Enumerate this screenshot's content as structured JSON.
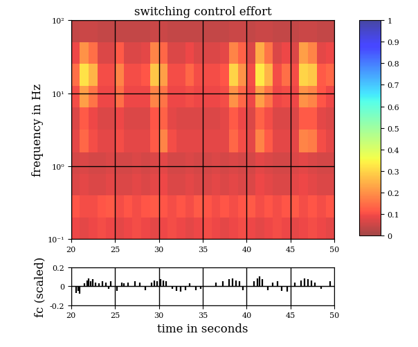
{
  "chart_data": [
    {
      "type": "heatmap",
      "title": "switching control effort",
      "ylabel": "frequency in Hz",
      "log": "y",
      "grid": true,
      "x": [
        20.5,
        21.5,
        22.5,
        23.5,
        24.5,
        25.5,
        26.5,
        27.5,
        28.5,
        29.5,
        30.5,
        31.5,
        32.5,
        33.5,
        34.5,
        35.5,
        36.5,
        37.5,
        38.5,
        39.5,
        40.5,
        41.5,
        42.5,
        43.5,
        44.5,
        45.5,
        46.5,
        47.5,
        48.5,
        49.5
      ],
      "y": [
        0.14,
        0.28,
        0.56,
        1.1,
        2.2,
        4.5,
        8.9,
        18,
        35,
        71
      ],
      "cells": [
        [
          0.09,
          0.08,
          0.09,
          0.1,
          0.09,
          0.08,
          0.09,
          0.1,
          0.09,
          0.08,
          0.09,
          0.1,
          0.09,
          0.08,
          0.09,
          0.1,
          0.09,
          0.08,
          0.09,
          0.1,
          0.09,
          0.08,
          0.09,
          0.1,
          0.09,
          0.08,
          0.09,
          0.1,
          0.09,
          0.08
        ],
        [
          0.11,
          0.1,
          0.1,
          0.11,
          0.12,
          0.1,
          0.11,
          0.1,
          0.11,
          0.12,
          0.11,
          0.1,
          0.11,
          0.1,
          0.12,
          0.11,
          0.1,
          0.11,
          0.1,
          0.11,
          0.12,
          0.1,
          0.11,
          0.1,
          0.11,
          0.12,
          0.1,
          0.11,
          0.1,
          0.11
        ],
        [
          0.07,
          0.08,
          0.07,
          0.07,
          0.08,
          0.07,
          0.07,
          0.08,
          0.07,
          0.08,
          0.09,
          0.07,
          0.07,
          0.08,
          0.07,
          0.07,
          0.08,
          0.07,
          0.08,
          0.07,
          0.07,
          0.09,
          0.08,
          0.07,
          0.07,
          0.08,
          0.09,
          0.08,
          0.07,
          0.07
        ],
        [
          0.06,
          0.07,
          0.06,
          0.06,
          0.07,
          0.06,
          0.06,
          0.07,
          0.06,
          0.07,
          0.08,
          0.06,
          0.06,
          0.07,
          0.06,
          0.06,
          0.07,
          0.06,
          0.07,
          0.06,
          0.06,
          0.08,
          0.07,
          0.06,
          0.06,
          0.07,
          0.08,
          0.07,
          0.06,
          0.06
        ],
        [
          0.08,
          0.14,
          0.1,
          0.08,
          0.08,
          0.1,
          0.08,
          0.08,
          0.08,
          0.12,
          0.18,
          0.1,
          0.08,
          0.08,
          0.08,
          0.08,
          0.08,
          0.08,
          0.14,
          0.1,
          0.08,
          0.18,
          0.12,
          0.08,
          0.08,
          0.08,
          0.18,
          0.17,
          0.1,
          0.08
        ],
        [
          0.07,
          0.12,
          0.09,
          0.07,
          0.07,
          0.09,
          0.07,
          0.07,
          0.07,
          0.11,
          0.13,
          0.08,
          0.07,
          0.07,
          0.07,
          0.07,
          0.07,
          0.08,
          0.12,
          0.09,
          0.07,
          0.13,
          0.1,
          0.07,
          0.07,
          0.07,
          0.12,
          0.12,
          0.08,
          0.07
        ],
        [
          0.1,
          0.22,
          0.16,
          0.09,
          0.09,
          0.15,
          0.09,
          0.09,
          0.09,
          0.18,
          0.16,
          0.09,
          0.09,
          0.1,
          0.09,
          0.09,
          0.09,
          0.1,
          0.2,
          0.14,
          0.09,
          0.22,
          0.16,
          0.09,
          0.1,
          0.09,
          0.2,
          0.18,
          0.11,
          0.09
        ],
        [
          0.15,
          0.32,
          0.25,
          0.1,
          0.1,
          0.18,
          0.1,
          0.1,
          0.11,
          0.28,
          0.22,
          0.1,
          0.1,
          0.14,
          0.1,
          0.1,
          0.1,
          0.11,
          0.3,
          0.2,
          0.1,
          0.33,
          0.25,
          0.1,
          0.15,
          0.1,
          0.3,
          0.28,
          0.12,
          0.14
        ],
        [
          0.09,
          0.2,
          0.15,
          0.07,
          0.07,
          0.12,
          0.07,
          0.07,
          0.08,
          0.18,
          0.14,
          0.07,
          0.07,
          0.09,
          0.07,
          0.07,
          0.07,
          0.08,
          0.18,
          0.13,
          0.07,
          0.24,
          0.16,
          0.07,
          0.09,
          0.07,
          0.22,
          0.18,
          0.08,
          0.09
        ],
        [
          0.04,
          0.05,
          0.05,
          0.04,
          0.04,
          0.04,
          0.04,
          0.04,
          0.04,
          0.05,
          0.05,
          0.04,
          0.04,
          0.04,
          0.04,
          0.04,
          0.04,
          0.04,
          0.05,
          0.05,
          0.04,
          0.05,
          0.05,
          0.04,
          0.04,
          0.04,
          0.05,
          0.05,
          0.04,
          0.04
        ]
      ],
      "xlim": [
        20,
        50
      ],
      "xticks": [
        20,
        25,
        30,
        35,
        40,
        45,
        50
      ],
      "ylim": [
        0.1,
        100
      ],
      "yticks": [
        {
          "value": 0.1,
          "label": "10⁻¹"
        },
        {
          "value": 1,
          "label": "10⁰"
        },
        {
          "value": 10,
          "label": "10¹"
        },
        {
          "value": 100,
          "label": "10²"
        }
      ],
      "colorbar": {
        "range": [
          0,
          1
        ],
        "ticks": [
          0,
          0.1,
          0.2,
          0.3,
          0.4,
          0.5,
          0.6,
          0.7,
          0.8,
          0.9,
          1
        ]
      }
    },
    {
      "type": "bar",
      "xlabel": "time in seconds",
      "ylabel": "fc (scaled)",
      "color": "#000000",
      "grid": true,
      "x": [
        20.6,
        20.8,
        21.0,
        21.5,
        21.8,
        22.0,
        22.2,
        22.5,
        22.8,
        23.2,
        23.6,
        24.0,
        24.3,
        24.5,
        25.2,
        25.8,
        26.0,
        26.5,
        27.3,
        27.8,
        28.5,
        29.2,
        29.5,
        29.8,
        30.2,
        30.5,
        30.8,
        31.5,
        32.0,
        32.5,
        33.0,
        33.5,
        34.2,
        34.8,
        36.5,
        37.3,
        38.0,
        38.4,
        38.8,
        39.2,
        39.6,
        40.8,
        41.2,
        41.5,
        41.8,
        42.4,
        43.0,
        43.5,
        44.0,
        44.6,
        45.5,
        46.2,
        46.6,
        47.0,
        47.4,
        47.8,
        48.5,
        49.5
      ],
      "values": [
        -0.07,
        -0.05,
        -0.08,
        0.03,
        0.06,
        0.08,
        0.05,
        0.07,
        0.04,
        0.03,
        0.05,
        0.04,
        -0.03,
        0.05,
        -0.05,
        0.04,
        0.03,
        0.04,
        0.05,
        0.04,
        -0.04,
        0.04,
        0.06,
        0.05,
        0.07,
        0.06,
        0.05,
        -0.03,
        -0.05,
        -0.06,
        -0.04,
        0.03,
        -0.04,
        -0.03,
        0.04,
        0.05,
        0.07,
        0.08,
        0.06,
        0.05,
        -0.04,
        0.05,
        0.08,
        0.1,
        0.07,
        -0.04,
        0.04,
        0.05,
        -0.05,
        -0.06,
        0.04,
        0.06,
        0.08,
        0.07,
        0.06,
        0.04,
        -0.03,
        0.05
      ],
      "xlim": [
        20,
        50
      ],
      "xticks": [
        20,
        25,
        30,
        35,
        40,
        45,
        50
      ],
      "ylim": [
        -0.2,
        0.2
      ],
      "yticks": [
        -0.2,
        0,
        0.2
      ]
    }
  ]
}
